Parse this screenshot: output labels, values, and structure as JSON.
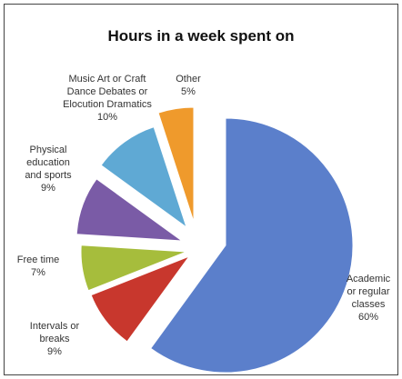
{
  "chart_data": {
    "type": "pie",
    "title": "Hours in a week spent on",
    "slices": [
      {
        "label_lines": [
          "Academic",
          "or regular",
          "classes",
          "60%"
        ],
        "value": 60,
        "color": "#5b7fcb"
      },
      {
        "label_lines": [
          "Intervals or",
          "breaks",
          "9%"
        ],
        "value": 9,
        "color": "#c8372d"
      },
      {
        "label_lines": [
          "Free time",
          "7%"
        ],
        "value": 7,
        "color": "#a6bd3c"
      },
      {
        "label_lines": [
          "Physical",
          "education",
          "and sports",
          "9%"
        ],
        "value": 9,
        "color": "#7a5ba6"
      },
      {
        "label_lines": [
          "Music Art or Craft",
          "Dance Debates or",
          "Elocution Dramatics",
          "10%"
        ],
        "value": 10,
        "color": "#5fa9d4"
      },
      {
        "label_lines": [
          "Other",
          "5%"
        ],
        "value": 5,
        "color": "#ef9a2c"
      }
    ],
    "legend": "none",
    "exploded": true
  }
}
